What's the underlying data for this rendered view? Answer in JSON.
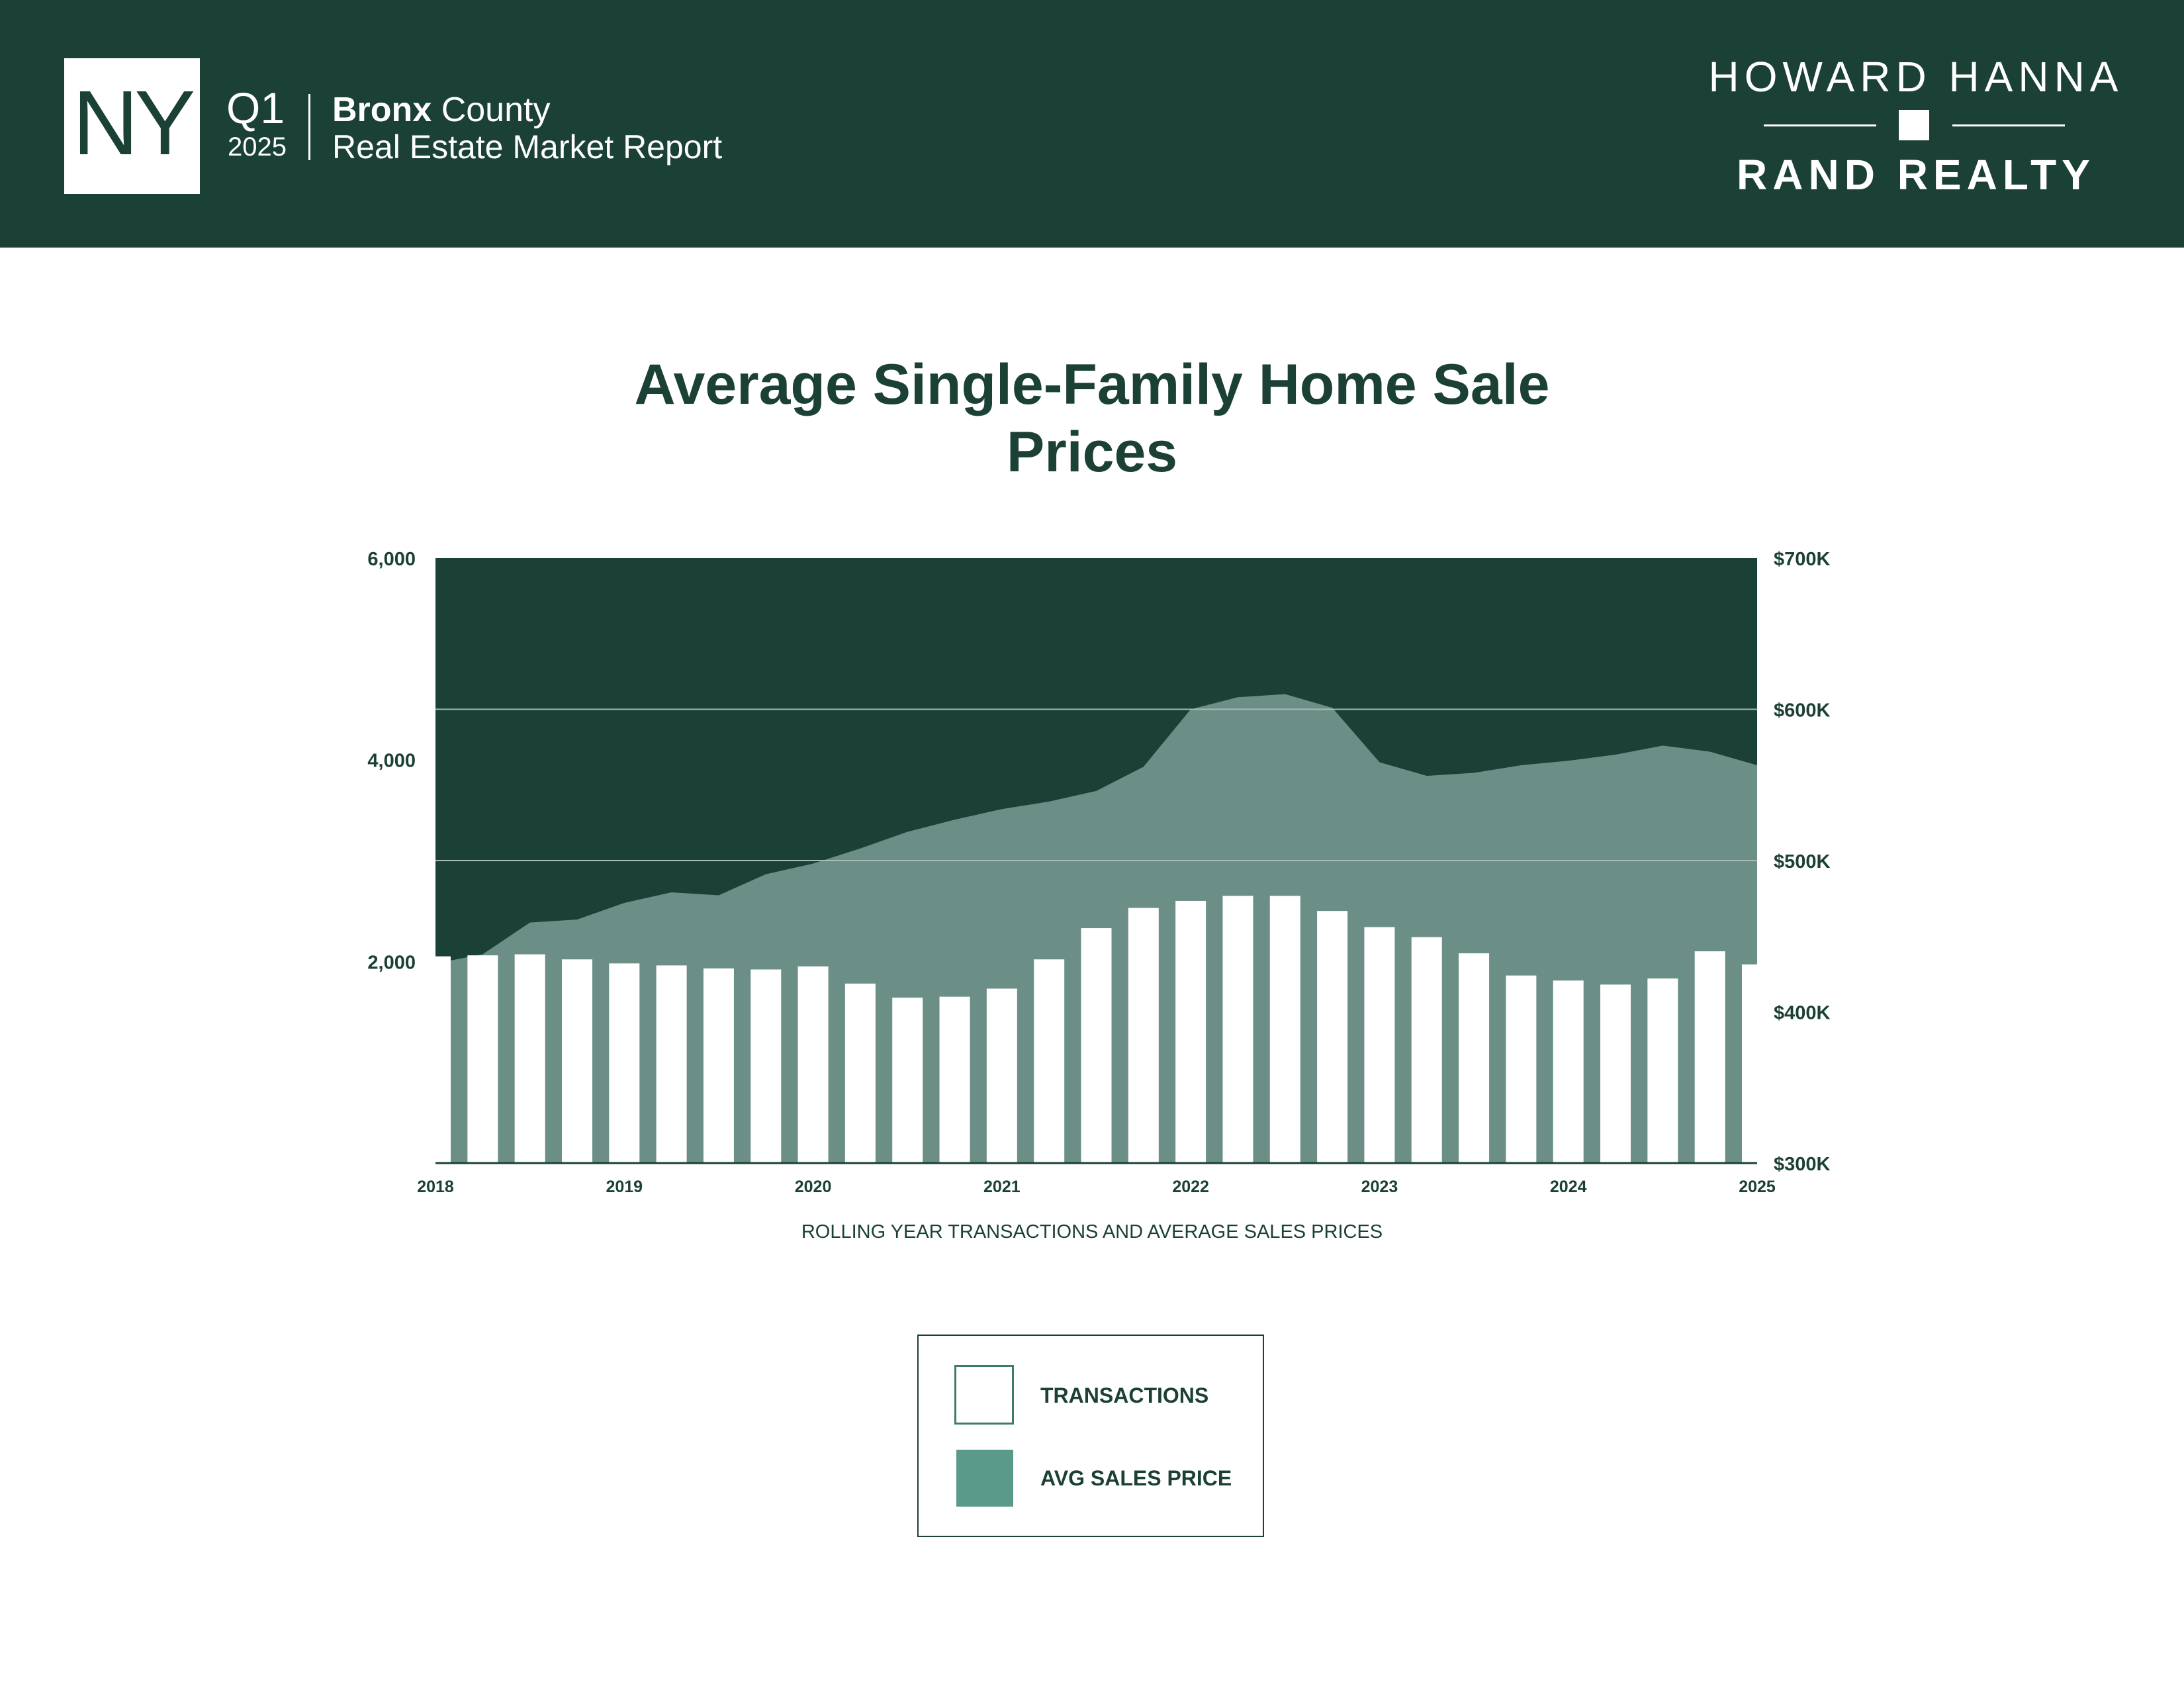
{
  "header": {
    "state": "NY",
    "quarter": "Q1",
    "year": "2025",
    "county_bold": "Bronx",
    "county_rest": " County",
    "report_title": "Real Estate Market Report",
    "brand_top": "HOWARD HANNA",
    "brand_bottom": "RAND REALTY"
  },
  "colors": {
    "dark_green": "#1b4036",
    "area_green": "#6b8f87",
    "legend_green": "#5a9a8a",
    "white": "#ffffff"
  },
  "chart_data": {
    "type": "bar",
    "title": "Average Single-Family Home Sale Prices",
    "xlabel": "ROLLING YEAR TRANSACTIONS AND AVERAGE SALES PRICES",
    "x_ticks": [
      "2018",
      "2019",
      "2020",
      "2021",
      "2022",
      "2023",
      "2024",
      "2025"
    ],
    "y_left": {
      "ticks": [
        2000,
        4000,
        6000
      ],
      "tick_labels": [
        "2,000",
        "4,000",
        "6,000"
      ],
      "lim": [
        0,
        6000
      ]
    },
    "y_right": {
      "ticks": [
        300,
        400,
        500,
        600,
        700
      ],
      "tick_labels": [
        "$300K",
        "$400K",
        "$500K",
        "$600K",
        "$700K"
      ],
      "lim": [
        300,
        700
      ]
    },
    "grid": "horizontal at $500K and $600K",
    "legend": "bottom-center",
    "series": [
      {
        "name": "TRANSACTIONS",
        "type": "bar",
        "axis": "left",
        "x": [
          2018.0,
          2018.25,
          2018.5,
          2018.75,
          2019.0,
          2019.25,
          2019.5,
          2019.75,
          2020.0,
          2020.25,
          2020.5,
          2020.75,
          2021.0,
          2021.25,
          2021.5,
          2021.75,
          2022.0,
          2022.25,
          2022.5,
          2022.75,
          2023.0,
          2023.25,
          2023.5,
          2023.75,
          2024.0,
          2024.25,
          2024.5,
          2024.75,
          2025.0
        ],
        "values": [
          2050,
          2060,
          2070,
          2020,
          1980,
          1960,
          1930,
          1920,
          1950,
          1780,
          1640,
          1650,
          1730,
          2020,
          2330,
          2530,
          2600,
          2650,
          2650,
          2500,
          2340,
          2240,
          2080,
          1860,
          1810,
          1770,
          1830,
          2100,
          1970
        ]
      },
      {
        "name": "AVG SALES PRICE",
        "type": "area",
        "axis": "right",
        "x": [
          2018.0,
          2018.25,
          2018.5,
          2018.75,
          2019.0,
          2019.25,
          2019.5,
          2019.75,
          2020.0,
          2020.25,
          2020.5,
          2020.75,
          2021.0,
          2021.25,
          2021.5,
          2021.75,
          2022.0,
          2022.25,
          2022.5,
          2022.75,
          2023.0,
          2023.25,
          2023.5,
          2023.75,
          2024.0,
          2024.25,
          2024.5,
          2024.75,
          2025.0
        ],
        "values": [
          432,
          438,
          459,
          461,
          472,
          479,
          477,
          491,
          498,
          508,
          519,
          527,
          534,
          539,
          546,
          562,
          600,
          608,
          610,
          601,
          565,
          556,
          558,
          563,
          566,
          570,
          576,
          572,
          563
        ]
      }
    ]
  }
}
